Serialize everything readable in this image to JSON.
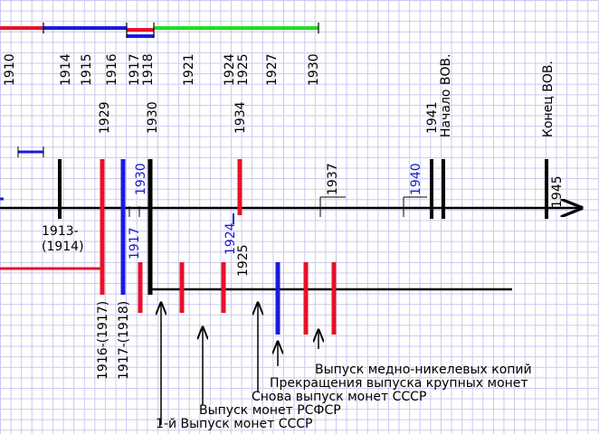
{
  "top_scale": {
    "labels": [
      "1910",
      "1914",
      "1915",
      "1916",
      "1917",
      "1918",
      "1921",
      "1924",
      "1925",
      "1927",
      "1930"
    ]
  },
  "timeline": {
    "labels": [
      "1929",
      "1930",
      "1934",
      "1941",
      "Начало ВОВ.",
      "Конец ВОВ.",
      "1937",
      "1930",
      "1940",
      "1945",
      "1913-",
      "(1914)",
      "1917",
      "1924",
      "1925",
      "1916-(1917)",
      "1917-(1918)"
    ]
  },
  "annotations": [
    "Выпуск медно-никелевых копий",
    "Прекращения выпуска крупных монет",
    "Снова выпуск монет СССР",
    "Выпуск монет РСФСР",
    "1-й Выпуск монет СССР"
  ]
}
